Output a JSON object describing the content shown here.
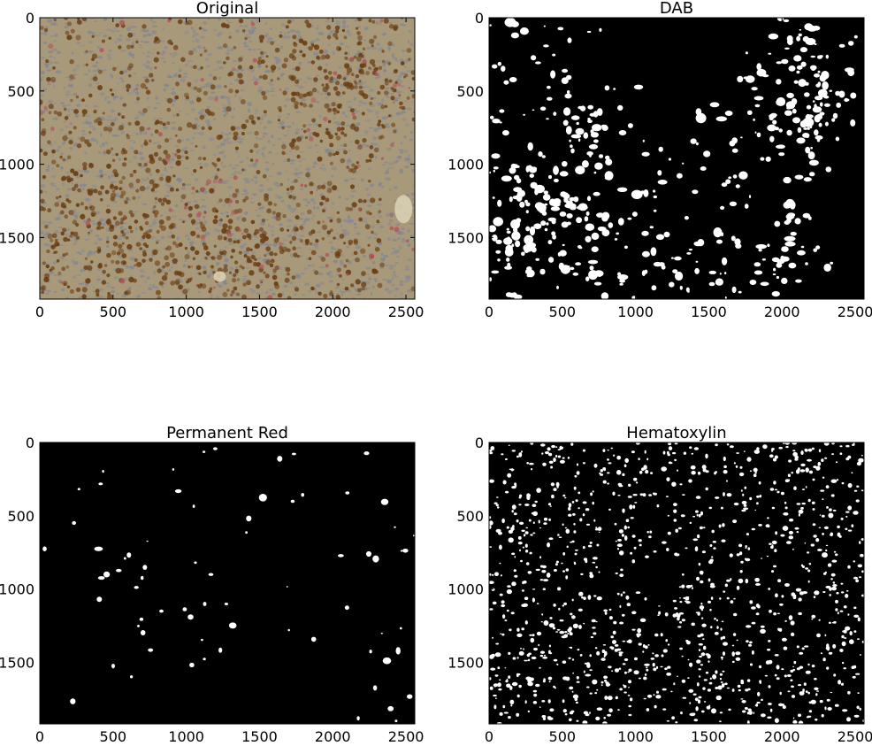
{
  "chart_data": [
    {
      "type": "heatmap",
      "title": "Original",
      "image": "rgb-micrograph",
      "xlim": [
        0,
        2560
      ],
      "ylim": [
        1920,
        0
      ],
      "xticks": [
        0,
        500,
        1000,
        1500,
        2000,
        2500
      ],
      "yticks": [
        0,
        500,
        1000,
        1500
      ],
      "colors": {
        "base": "#a9997b",
        "blue_nuclei": "#7e8494",
        "brown_dab": "#6b3f14",
        "red_stain": "#b2545a"
      }
    },
    {
      "type": "heatmap",
      "title": "DAB",
      "image": "binary-mask",
      "xlim": [
        0,
        2560
      ],
      "ylim": [
        1920,
        0
      ],
      "xticks": [
        0,
        500,
        1000,
        1500,
        2000,
        2500
      ],
      "yticks": [
        0,
        500,
        1000,
        1500
      ],
      "colors": {
        "background": "#000000",
        "foreground": "#ffffff"
      }
    },
    {
      "type": "heatmap",
      "title": "Permanent Red",
      "image": "binary-mask",
      "xlim": [
        0,
        2560
      ],
      "ylim": [
        1920,
        0
      ],
      "xticks": [
        0,
        500,
        1000,
        1500,
        2000,
        2500
      ],
      "yticks": [
        0,
        500,
        1000,
        1500
      ],
      "colors": {
        "background": "#000000",
        "foreground": "#ffffff"
      }
    },
    {
      "type": "heatmap",
      "title": "Hematoxylin",
      "image": "binary-mask",
      "xlim": [
        0,
        2560
      ],
      "ylim": [
        1920,
        0
      ],
      "xticks": [
        0,
        500,
        1000,
        1500,
        2000,
        2500
      ],
      "yticks": [
        0,
        500,
        1000,
        1500
      ],
      "colors": {
        "background": "#000000",
        "foreground": "#ffffff"
      }
    }
  ]
}
